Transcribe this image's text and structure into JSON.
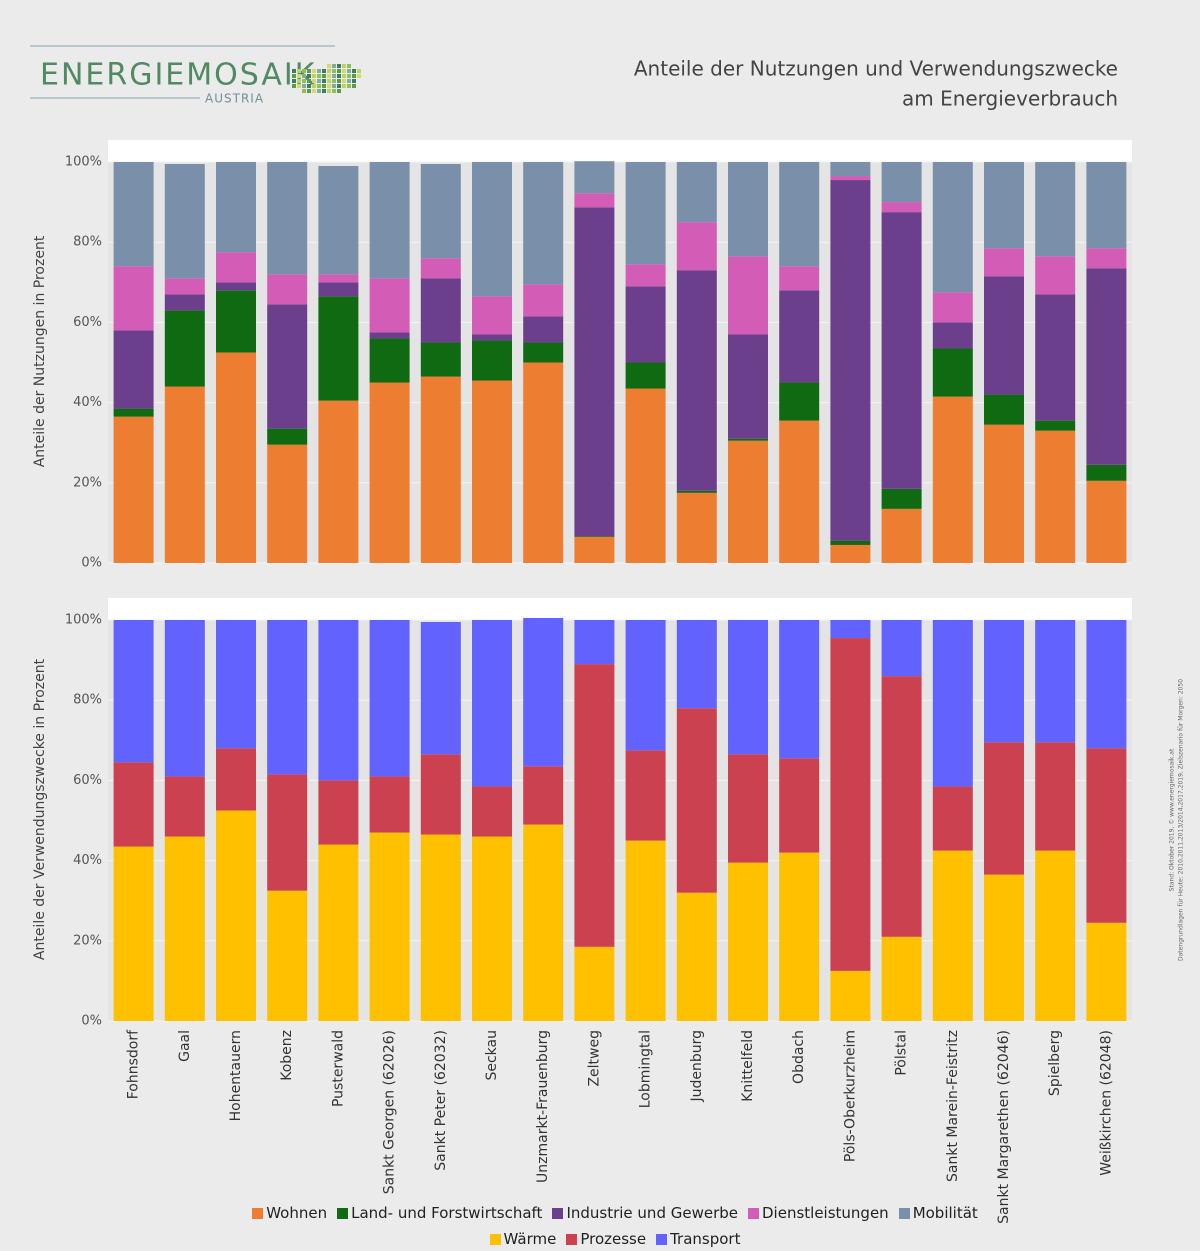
{
  "header": {
    "logo": "ENERGIEMOSAIK",
    "logo_sub": "AUSTRIA",
    "title_lines": [
      "Anteile der Nutzungen und Verwendungszwecke",
      "am Energieverbrauch"
    ]
  },
  "footnote_lines": [
    "Stand: Oktober 2019, © www.energiemosaik.at",
    "Datengrundlagen für Heute: 2010,2011,2013/2014,2017,2019, Zielszenario für Morgen: 2050"
  ],
  "chart_data": [
    {
      "type": "bar",
      "stacked": true,
      "ylabel": "Anteile der Nutzungen in Prozent",
      "ylim": [
        0,
        100
      ],
      "yticks": [
        {
          "value": 0,
          "label": "0%"
        },
        {
          "value": 20,
          "label": "20%"
        },
        {
          "value": 40,
          "label": "40%"
        },
        {
          "value": 60,
          "label": "60%"
        },
        {
          "value": 80,
          "label": "80%"
        },
        {
          "value": 100,
          "label": "100%"
        }
      ],
      "grid": true,
      "series": [
        {
          "name": "Wohnen",
          "color": "#ed7d31",
          "values": [
            36.5,
            44,
            52.5,
            29.5,
            40.5,
            45,
            46.5,
            45.5,
            50,
            6.5,
            43.5,
            17.5,
            30.5,
            35.5,
            4.5,
            13.5,
            41.5,
            34.5,
            33,
            20.5
          ]
        },
        {
          "name": "Land- und Forstwirtschaft",
          "color": "#0f6a12",
          "values": [
            2,
            19,
            15.5,
            4,
            26,
            11,
            8.5,
            10,
            5,
            0.2,
            6.5,
            0.5,
            0.5,
            9.5,
            1,
            5,
            12,
            7.5,
            2.5,
            4
          ]
        },
        {
          "name": "Industrie und Gewerbe",
          "color": "#6c3f8c",
          "values": [
            19.5,
            4,
            2,
            31,
            3.5,
            1.5,
            16,
            1.5,
            6.5,
            82,
            19,
            55,
            26,
            23,
            90,
            69,
            6.5,
            29.5,
            31.5,
            49
          ]
        },
        {
          "name": "Dienstleistungen",
          "color": "#d35cb6",
          "values": [
            16,
            4,
            7.5,
            7.5,
            2,
            13.5,
            5,
            9.5,
            8,
            3.5,
            5.5,
            12,
            19.5,
            6,
            1,
            2.5,
            7.5,
            7,
            9.5,
            5
          ]
        },
        {
          "name": "Mobilität",
          "color": "#7a90aa",
          "values": [
            26,
            28.5,
            22.5,
            28,
            27,
            29,
            23.5,
            33.5,
            30.5,
            8,
            25.5,
            15,
            23.5,
            26,
            3.5,
            10,
            32.5,
            21.5,
            23.5,
            21.5
          ]
        }
      ]
    },
    {
      "type": "bar",
      "stacked": true,
      "ylabel": "Anteile der Verwendungszwecke in Prozent",
      "categories": [
        "Fohnsdorf",
        "Gaal",
        "Hohentauern",
        "Kobenz",
        "Pusterwald",
        "Sankt Georgen (62026)",
        "Sankt Peter (62032)",
        "Seckau",
        "Unzmarkt-Frauenburg",
        "Zeltweg",
        "Lobmingtal",
        "Judenburg",
        "Knittelfeld",
        "Obdach",
        "Pöls-Oberkurzheim",
        "Pölstal",
        "Sankt Marein-Feistritz",
        "Sankt Margarethen (62046)",
        "Spielberg",
        "Weißkirchen (62048)"
      ],
      "ylim": [
        0,
        100
      ],
      "yticks": [
        {
          "value": 0,
          "label": "0%"
        },
        {
          "value": 20,
          "label": "20%"
        },
        {
          "value": 40,
          "label": "40%"
        },
        {
          "value": 60,
          "label": "60%"
        },
        {
          "value": 80,
          "label": "80%"
        },
        {
          "value": 100,
          "label": "100%"
        }
      ],
      "grid": true,
      "series": [
        {
          "name": "Wärme",
          "color": "#ffc000",
          "values": [
            43.5,
            46,
            52.5,
            32.5,
            44,
            47,
            46.5,
            46,
            49,
            18.5,
            45,
            32,
            39.5,
            42,
            12.5,
            21,
            42.5,
            36.5,
            42.5,
            24.5
          ]
        },
        {
          "name": "Prozesse",
          "color": "#cc4150",
          "values": [
            21,
            15,
            15.5,
            29,
            16,
            14,
            20,
            12.5,
            14.5,
            70.5,
            22.5,
            46,
            27,
            23.5,
            83,
            65,
            16,
            33,
            27,
            43.5
          ]
        },
        {
          "name": "Transport",
          "color": "#6262ff",
          "values": [
            35.5,
            39,
            32,
            38.5,
            40,
            39,
            33,
            41.5,
            37,
            11,
            32.5,
            22,
            33.5,
            34.5,
            4.5,
            14,
            41.5,
            30.5,
            30.5,
            32
          ]
        }
      ]
    }
  ]
}
